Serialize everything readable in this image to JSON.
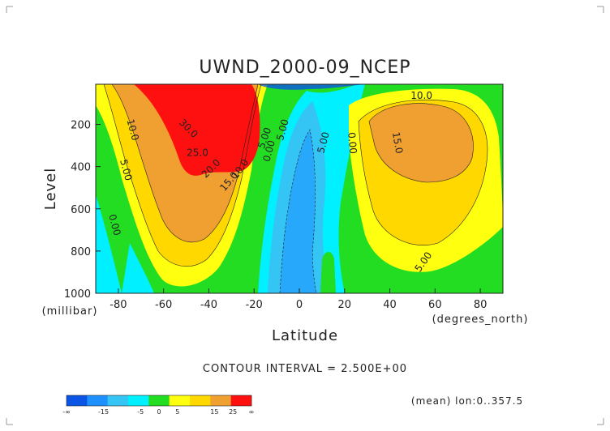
{
  "chart_data": {
    "type": "heatmap",
    "title": "UWND_2000-09_NCEP",
    "xlabel": "Latitude",
    "ylabel": "Level",
    "x_units": "(degrees_north)",
    "y_units": "(millibar)",
    "x_ticks": [
      -80,
      -60,
      -40,
      -20,
      0,
      20,
      40,
      60,
      80
    ],
    "y_ticks": [
      200,
      400,
      600,
      800,
      1000
    ],
    "xlim": [
      -90,
      90
    ],
    "ylim": [
      1000,
      10
    ],
    "contour_interval_text": "CONTOUR INTERVAL = 2.500E+00",
    "footnote": "(mean) lon:0..357.5",
    "colorbar": {
      "levels": [
        -20,
        -15,
        -10,
        -5,
        0,
        5,
        10,
        15,
        20,
        25
      ],
      "tick_labels": [
        "-∞",
        "-15",
        "-5",
        "0",
        "5",
        "15",
        "25",
        "∞"
      ],
      "colors": [
        "#0a55e6",
        "#1e90ff",
        "#34c5f5",
        "#00f0ff",
        "#22dd22",
        "#ffff10",
        "#ffd800",
        "#f0a030",
        "#ff1010"
      ]
    },
    "contour_labels": [
      {
        "text": "10.0",
        "lat": -75,
        "lev": 230,
        "rot": 75
      },
      {
        "text": "5.00",
        "lat": -78,
        "lev": 420,
        "rot": 75
      },
      {
        "text": "0.00",
        "lat": -83,
        "lev": 680,
        "rot": 75
      },
      {
        "text": "30.0",
        "lat": -50,
        "lev": 230,
        "rot": 45
      },
      {
        "text": "25.0",
        "lat": -45,
        "lev": 350,
        "rot": 0
      },
      {
        "text": "20.0",
        "lat": -38,
        "lev": 420,
        "rot": -45
      },
      {
        "text": "15.0",
        "lat": -30,
        "lev": 480,
        "rot": -50
      },
      {
        "text": "10.0",
        "lat": -25,
        "lev": 420,
        "rot": -55
      },
      {
        "text": "5.00",
        "lat": -14,
        "lev": 270,
        "rot": -70
      },
      {
        "text": "0.00",
        "lat": -12,
        "lev": 330,
        "rot": -75
      },
      {
        "text": "5.00",
        "lat": -6,
        "lev": 230,
        "rot": -75
      },
      {
        "text": "5.00",
        "lat": 12,
        "lev": 290,
        "rot": -75
      },
      {
        "text": "0.00",
        "lat": 22,
        "lev": 290,
        "rot": 85
      },
      {
        "text": "10.0",
        "lat": 54,
        "lev": 80,
        "rot": 0
      },
      {
        "text": "15.0",
        "lat": 42,
        "lev": 290,
        "rot": 80
      },
      {
        "text": "5.00",
        "lat": 56,
        "lev": 860,
        "rot": -55
      }
    ]
  }
}
